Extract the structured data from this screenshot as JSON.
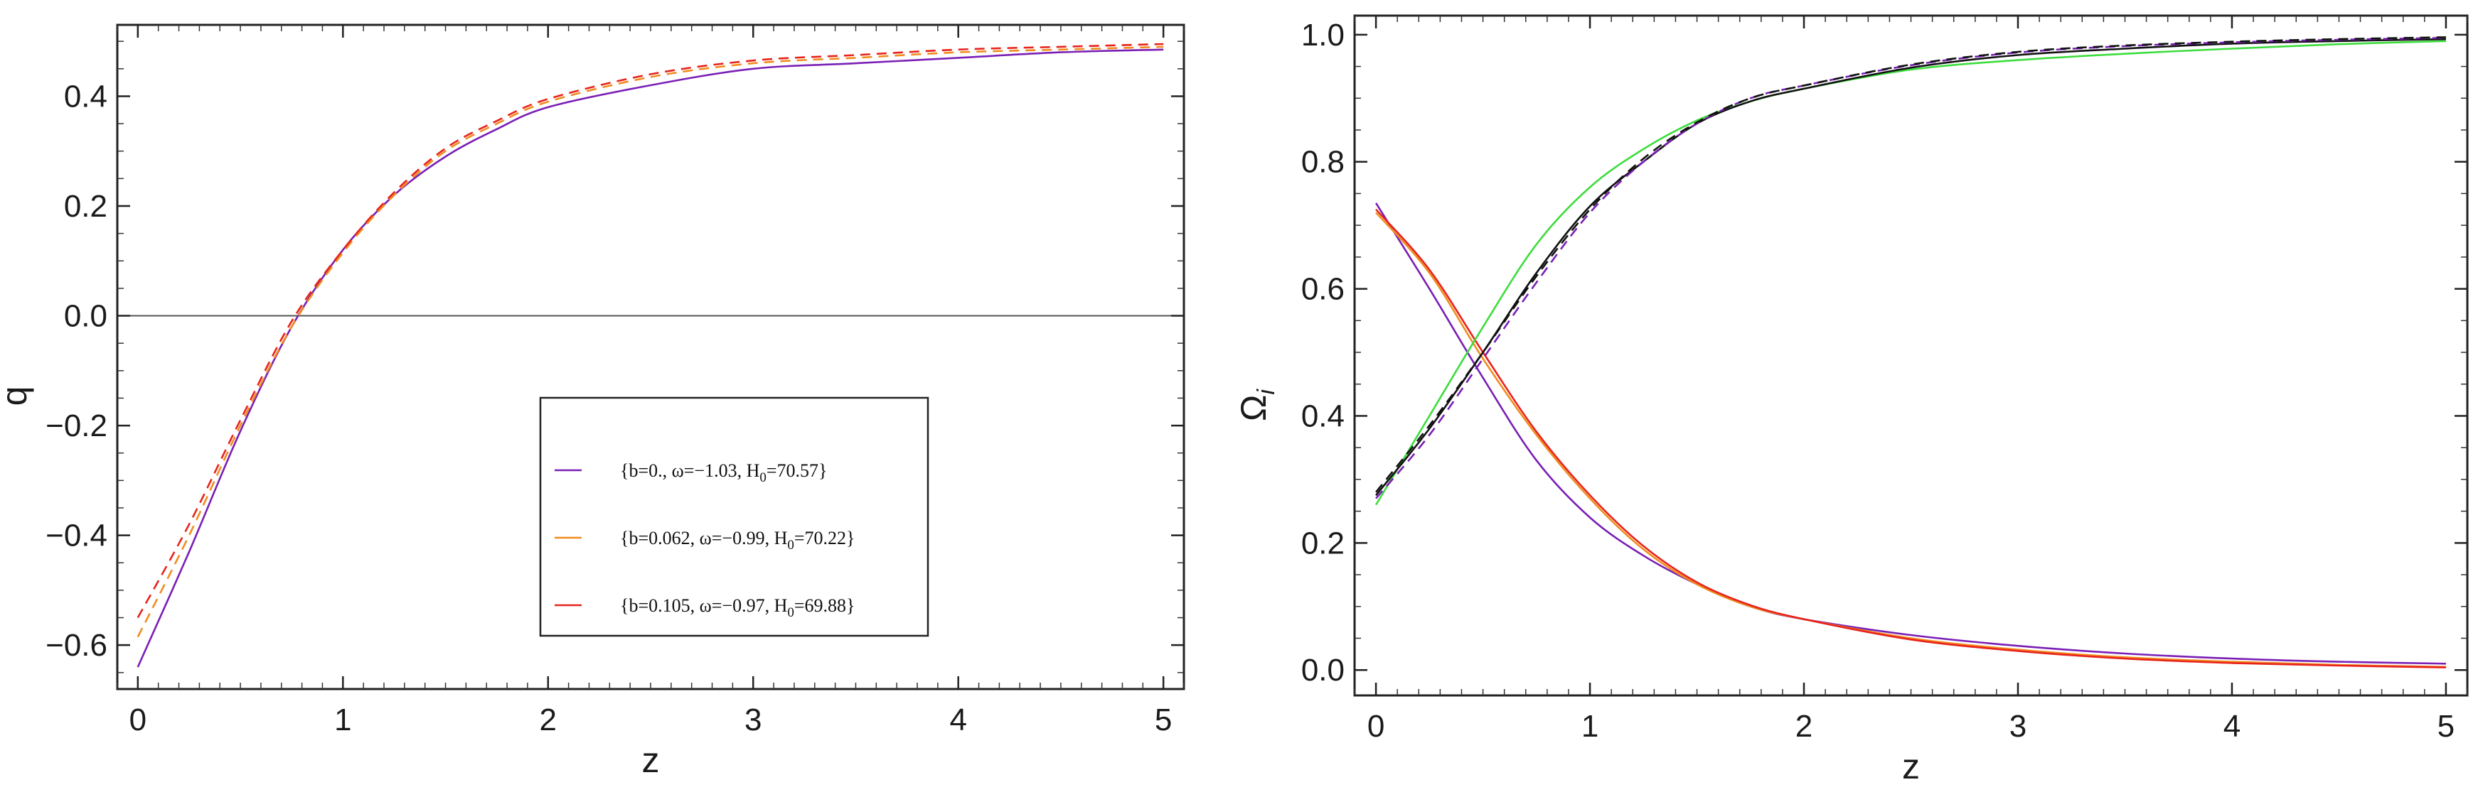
{
  "chart_data": [
    {
      "type": "line",
      "xlabel": "z",
      "ylabel": "q",
      "xlim": [
        -0.1,
        5.1
      ],
      "ylim": [
        -0.68,
        0.53
      ],
      "x_ticks": [
        0,
        1,
        2,
        3,
        4,
        5
      ],
      "y_ticks": [
        -0.6,
        -0.4,
        -0.2,
        0.0,
        0.2,
        0.4
      ],
      "x_tick_labels": [
        "0",
        "1",
        "2",
        "3",
        "4",
        "5"
      ],
      "y_tick_labels": [
        "−0.6",
        "−0.4",
        "−0.2",
        "0.0",
        "0.2",
        "0.4"
      ],
      "reference_line_y": 0,
      "legend_position": "center-right",
      "x": [
        0,
        0.25,
        0.5,
        0.75,
        1,
        1.25,
        1.5,
        1.75,
        2,
        2.5,
        3,
        3.5,
        4,
        4.5,
        5
      ],
      "series": [
        {
          "name": "{b=0., ω=−1.03, H₀=70.57}",
          "color": "#7a1fb5",
          "dash": "solid",
          "values": [
            -0.64,
            -0.43,
            -0.21,
            -0.02,
            0.12,
            0.22,
            0.29,
            0.34,
            0.38,
            0.42,
            0.45,
            0.46,
            0.47,
            0.48,
            0.485
          ]
        },
        {
          "name": "{b=0.062, ω=−0.99, H₀=70.22}",
          "color": "#f08c1e",
          "dash": "dashed",
          "values": [
            -0.585,
            -0.4,
            -0.2,
            -0.02,
            0.115,
            0.22,
            0.3,
            0.35,
            0.39,
            0.435,
            0.46,
            0.47,
            0.48,
            0.485,
            0.49
          ]
        },
        {
          "name": "{b=0.105, ω=−0.97, H₀=69.88}",
          "color": "#e8231c",
          "dash": "dashed",
          "values": [
            -0.55,
            -0.38,
            -0.19,
            -0.01,
            0.12,
            0.225,
            0.305,
            0.355,
            0.395,
            0.44,
            0.465,
            0.475,
            0.485,
            0.49,
            0.495
          ]
        }
      ]
    },
    {
      "type": "line",
      "xlabel": "z",
      "ylabel": "Ωi",
      "xlim": [
        -0.1,
        5.1
      ],
      "ylim": [
        -0.04,
        1.03
      ],
      "x_ticks": [
        0,
        1,
        2,
        3,
        4,
        5
      ],
      "y_ticks": [
        0.0,
        0.2,
        0.4,
        0.6,
        0.8,
        1.0
      ],
      "x_tick_labels": [
        "0",
        "1",
        "2",
        "3",
        "4",
        "5"
      ],
      "y_tick_labels": [
        "0.0",
        "0.2",
        "0.4",
        "0.6",
        "0.8",
        "1.0"
      ],
      "x": [
        0,
        0.25,
        0.5,
        0.75,
        1,
        1.25,
        1.5,
        1.75,
        2,
        2.5,
        3,
        3.5,
        4,
        4.5,
        5
      ],
      "series": [
        {
          "color": "#7a1fb5",
          "dash": "solid",
          "values": [
            0.735,
            0.6,
            0.46,
            0.33,
            0.24,
            0.18,
            0.135,
            0.1,
            0.08,
            0.055,
            0.038,
            0.026,
            0.018,
            0.013,
            0.01
          ]
        },
        {
          "color": "#f08c1e",
          "dash": "solid",
          "values": [
            0.72,
            0.625,
            0.49,
            0.37,
            0.27,
            0.19,
            0.135,
            0.1,
            0.08,
            0.05,
            0.032,
            0.02,
            0.013,
            0.008,
            0.005
          ]
        },
        {
          "color": "#e8231c",
          "dash": "solid",
          "values": [
            0.725,
            0.63,
            0.5,
            0.375,
            0.275,
            0.195,
            0.138,
            0.102,
            0.08,
            0.048,
            0.03,
            0.018,
            0.011,
            0.007,
            0.004
          ]
        },
        {
          "color": "#3ddc3d",
          "dash": "solid",
          "values": [
            0.26,
            0.4,
            0.54,
            0.67,
            0.76,
            0.82,
            0.865,
            0.895,
            0.915,
            0.945,
            0.96,
            0.97,
            0.978,
            0.985,
            0.99
          ]
        },
        {
          "color": "#111111",
          "dash": "solid",
          "values": [
            0.275,
            0.38,
            0.5,
            0.625,
            0.73,
            0.8,
            0.86,
            0.895,
            0.915,
            0.948,
            0.968,
            0.978,
            0.986,
            0.99,
            0.993
          ]
        },
        {
          "color": "#7a1fb5",
          "dash": "dashed",
          "values": [
            0.27,
            0.37,
            0.49,
            0.61,
            0.72,
            0.8,
            0.86,
            0.9,
            0.92,
            0.952,
            0.972,
            0.982,
            0.988,
            0.992,
            0.995
          ]
        },
        {
          "color": "#111111",
          "dash": "dashed",
          "values": [
            0.28,
            0.385,
            0.5,
            0.62,
            0.725,
            0.805,
            0.862,
            0.9,
            0.92,
            0.953,
            0.973,
            0.983,
            0.989,
            0.993,
            0.996
          ]
        }
      ]
    }
  ]
}
